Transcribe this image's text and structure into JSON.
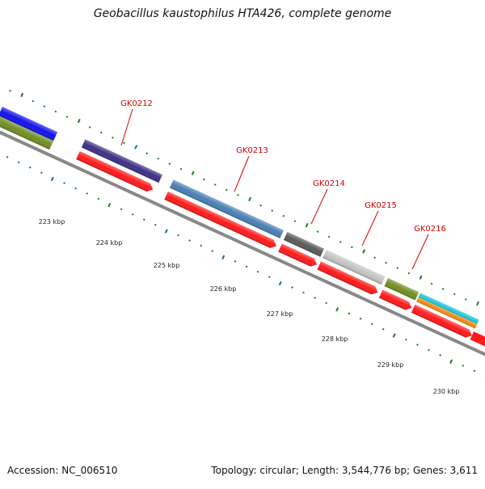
{
  "title": "Geobacillus kaustophilus HTA426, complete genome",
  "footer": {
    "accession": "Accession: NC_006510",
    "summary": "Topology: circular; Length: 3,544,776 bp; Genes: 3,611"
  },
  "colors": {
    "backbone": "#888888",
    "cds": "#ff1a1a",
    "tick": "#1f7a1f",
    "gene_label": "#cc0000",
    "kbp_label": "#222222"
  },
  "scale_labels": [
    "223 kbp",
    "224 kbp",
    "225 kbp",
    "226 kbp",
    "227 kbp",
    "228 kbp",
    "229 kbp",
    "230 kbp"
  ],
  "gene_labels": [
    "GK0212",
    "GK0213",
    "GK0214",
    "GK0215",
    "GK0216"
  ]
}
